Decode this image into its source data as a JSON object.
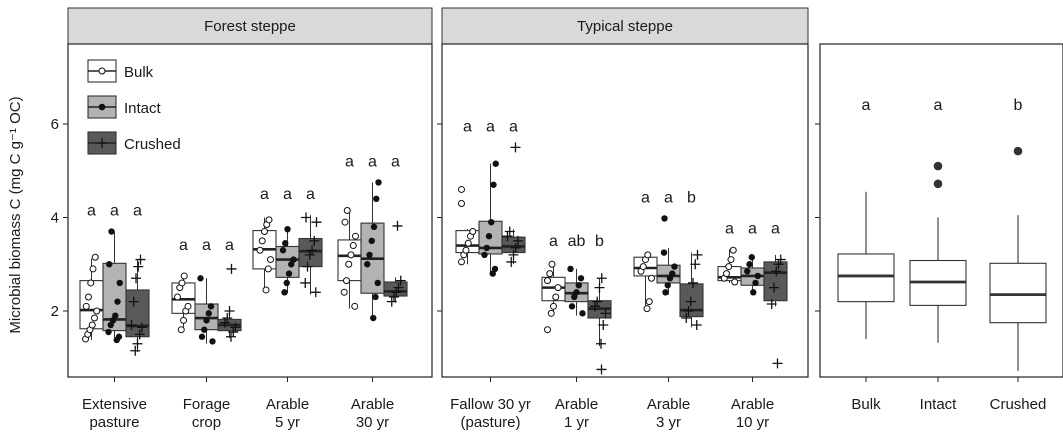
{
  "chart_data": {
    "type": "box",
    "ylabel": "Microbial biomass C (mg C g⁻¹ OC)",
    "ylim": [
      0.4,
      7.8
    ],
    "yticks": [
      2,
      4,
      6
    ],
    "colors": {
      "Bulk": "#ffffff",
      "Intact": "#b3b3b3",
      "Crushed": "#595959"
    },
    "legend": {
      "position": "top-left",
      "entries": [
        "Bulk",
        "Intact",
        "Crushed"
      ]
    },
    "panels": [
      {
        "strip": "Forest steppe",
        "categories": [
          {
            "label": [
              "Extensive",
              "pasture"
            ],
            "letters": [
              "a",
              "a",
              "a"
            ],
            "boxes": [
              {
                "q1": 1.62,
                "median": 2.02,
                "q3": 2.65,
                "wlo": 1.38,
                "whi": 3.12,
                "pts": [
                  1.4,
                  1.5,
                  1.6,
                  1.7,
                  1.85,
                  2.0,
                  2.1,
                  2.3,
                  2.6,
                  2.9,
                  3.15
                ]
              },
              {
                "q1": 1.58,
                "median": 1.82,
                "q3": 3.02,
                "wlo": 1.38,
                "whi": 3.7,
                "pts": [
                  1.38,
                  1.45,
                  1.55,
                  1.7,
                  1.8,
                  1.9,
                  2.2,
                  2.6,
                  3.0,
                  3.7
                ]
              },
              {
                "q1": 1.45,
                "median": 1.68,
                "q3": 2.45,
                "wlo": 1.12,
                "whi": 3.1,
                "pts": [
                  1.15,
                  1.3,
                  1.5,
                  1.65,
                  1.7,
                  2.2,
                  2.7,
                  2.95,
                  3.1
                ]
              }
            ]
          },
          {
            "label": [
              "Forage",
              "crop"
            ],
            "letters": [
              "a",
              "a",
              "a"
            ],
            "boxes": [
              {
                "q1": 1.95,
                "median": 2.25,
                "q3": 2.6,
                "wlo": 1.55,
                "whi": 2.8,
                "pts": [
                  1.6,
                  1.8,
                  2.0,
                  2.1,
                  2.3,
                  2.5,
                  2.6,
                  2.75
                ]
              },
              {
                "q1": 1.6,
                "median": 1.85,
                "q3": 2.15,
                "wlo": 1.3,
                "whi": 2.7,
                "pts": [
                  1.35,
                  1.45,
                  1.6,
                  1.8,
                  1.95,
                  2.1,
                  2.7
                ]
              },
              {
                "q1": 1.58,
                "median": 1.7,
                "q3": 1.82,
                "wlo": 1.42,
                "whi": 1.95,
                "pts": [
                  1.45,
                  1.55,
                  1.65,
                  1.75,
                  1.85,
                  2.0
                ],
                "outliers": [
                  2.9
                ]
              }
            ]
          },
          {
            "label": [
              "Arable",
              "5 yr"
            ],
            "letters": [
              "a",
              "a",
              "a"
            ],
            "boxes": [
              {
                "q1": 2.9,
                "median": 3.32,
                "q3": 3.72,
                "wlo": 2.4,
                "whi": 4.0,
                "pts": [
                  2.45,
                  2.9,
                  3.1,
                  3.3,
                  3.5,
                  3.7,
                  3.85,
                  3.95
                ]
              },
              {
                "q1": 2.72,
                "median": 3.1,
                "q3": 3.38,
                "wlo": 2.38,
                "whi": 3.78,
                "pts": [
                  2.4,
                  2.6,
                  2.8,
                  3.0,
                  3.1,
                  3.3,
                  3.45,
                  3.75
                ]
              },
              {
                "q1": 2.95,
                "median": 3.28,
                "q3": 3.55,
                "wlo": 2.35,
                "whi": 4.05,
                "pts": [
                  2.4,
                  2.6,
                  2.95,
                  3.2,
                  3.3,
                  3.5,
                  3.9,
                  4.0
                ]
              }
            ]
          },
          {
            "label": [
              "Arable",
              "30 yr"
            ],
            "letters": [
              "a",
              "a",
              "a"
            ],
            "boxes": [
              {
                "q1": 2.65,
                "median": 3.18,
                "q3": 3.52,
                "wlo": 2.05,
                "whi": 4.2,
                "pts": [
                  2.1,
                  2.4,
                  2.65,
                  3.0,
                  3.2,
                  3.4,
                  3.6,
                  3.9,
                  4.15
                ]
              },
              {
                "q1": 2.38,
                "median": 3.12,
                "q3": 3.88,
                "wlo": 1.8,
                "whi": 4.75,
                "pts": [
                  1.85,
                  2.3,
                  2.6,
                  3.0,
                  3.2,
                  3.5,
                  3.8,
                  4.4,
                  4.75
                ]
              },
              {
                "q1": 2.32,
                "median": 2.42,
                "q3": 2.62,
                "wlo": 2.18,
                "whi": 2.72,
                "pts": [
                  2.2,
                  2.3,
                  2.4,
                  2.5,
                  2.65
                ],
                "outliers": [
                  3.82
                ]
              }
            ]
          }
        ]
      },
      {
        "strip": "Typical steppe",
        "categories": [
          {
            "label": [
              "Fallow 30 yr",
              "(pasture)"
            ],
            "letters": [
              "a",
              "a",
              "a"
            ],
            "boxes": [
              {
                "q1": 3.25,
                "median": 3.4,
                "q3": 3.72,
                "wlo": 3.0,
                "whi": 3.75,
                "pts": [
                  3.05,
                  3.2,
                  3.3,
                  3.45,
                  3.6,
                  3.7
                ],
                "outliers": [
                  4.3,
                  4.6
                ]
              },
              {
                "q1": 3.22,
                "median": 3.35,
                "q3": 3.92,
                "wlo": 2.8,
                "whi": 5.15,
                "pts": [
                  2.8,
                  2.9,
                  3.2,
                  3.35,
                  3.6,
                  3.9,
                  4.7,
                  5.15
                ]
              },
              {
                "q1": 3.25,
                "median": 3.38,
                "q3": 3.58,
                "wlo": 3.0,
                "whi": 3.75,
                "pts": [
                  3.05,
                  3.2,
                  3.35,
                  3.5,
                  3.6,
                  3.7
                ],
                "outliers": [
                  5.5
                ]
              }
            ]
          },
          {
            "label": [
              "Arable",
              "1 yr"
            ],
            "letters": [
              "a",
              "ab",
              "b"
            ],
            "boxes": [
              {
                "q1": 2.22,
                "median": 2.5,
                "q3": 2.72,
                "wlo": 1.9,
                "whi": 3.05,
                "pts": [
                  1.95,
                  2.1,
                  2.3,
                  2.5,
                  2.65,
                  2.8,
                  3.0
                ],
                "outliers": [
                  1.6
                ]
              },
              {
                "q1": 2.2,
                "median": 2.38,
                "q3": 2.6,
                "wlo": 1.9,
                "whi": 2.9,
                "pts": [
                  1.95,
                  2.1,
                  2.3,
                  2.4,
                  2.55,
                  2.7,
                  2.9
                ]
              },
              {
                "q1": 1.85,
                "median": 2.05,
                "q3": 2.22,
                "wlo": 1.25,
                "whi": 2.7,
                "pts": [
                  1.3,
                  1.7,
                  1.95,
                  2.1,
                  2.2,
                  2.5,
                  2.7
                ],
                "outliers": [
                  0.75
                ]
              }
            ]
          },
          {
            "label": [
              "Arable",
              "3 yr"
            ],
            "letters": [
              "a",
              "a",
              "b"
            ],
            "boxes": [
              {
                "q1": 2.75,
                "median": 2.92,
                "q3": 3.15,
                "wlo": 2.05,
                "whi": 3.25,
                "pts": [
                  2.05,
                  2.2,
                  2.7,
                  2.85,
                  2.95,
                  3.1,
                  3.2
                ]
              },
              {
                "q1": 2.6,
                "median": 2.75,
                "q3": 2.98,
                "wlo": 2.35,
                "whi": 3.35,
                "pts": [
                  2.4,
                  2.55,
                  2.7,
                  2.8,
                  2.95,
                  3.25
                ],
                "outliers": [
                  3.98
                ]
              },
              {
                "q1": 1.88,
                "median": 2.02,
                "q3": 2.58,
                "wlo": 1.65,
                "whi": 3.25,
                "pts": [
                  1.7,
                  1.85,
                  2.0,
                  2.2,
                  2.6,
                  3.0,
                  3.2
                ]
              }
            ]
          },
          {
            "label": [
              "Arable",
              "10 yr"
            ],
            "letters": [
              "a",
              "a",
              "a"
            ],
            "boxes": [
              {
                "q1": 2.65,
                "median": 2.72,
                "q3": 2.95,
                "wlo": 2.6,
                "whi": 3.32,
                "pts": [
                  2.62,
                  2.7,
                  2.8,
                  2.95,
                  3.1,
                  3.3
                ]
              },
              {
                "q1": 2.55,
                "median": 2.75,
                "q3": 2.92,
                "wlo": 2.35,
                "whi": 3.2,
                "pts": [
                  2.4,
                  2.6,
                  2.75,
                  2.85,
                  3.0,
                  3.15
                ]
              },
              {
                "q1": 2.22,
                "median": 2.82,
                "q3": 3.05,
                "wlo": 2.1,
                "whi": 3.2,
                "pts": [
                  2.15,
                  2.5,
                  2.85,
                  3.0,
                  3.1
                ],
                "outliers": [
                  0.88
                ]
              }
            ]
          }
        ]
      },
      {
        "strip": "",
        "summary": true,
        "categories": [
          {
            "label": [
              "Bulk"
            ],
            "letter": "a",
            "box": {
              "q1": 2.2,
              "median": 2.75,
              "q3": 3.22,
              "wlo": 1.4,
              "whi": 4.55,
              "outliers": []
            }
          },
          {
            "label": [
              "Intact"
            ],
            "letter": "a",
            "box": {
              "q1": 2.12,
              "median": 2.62,
              "q3": 3.08,
              "wlo": 1.32,
              "whi": 4.0,
              "outliers": [
                4.72,
                5.1
              ]
            }
          },
          {
            "label": [
              "Crushed"
            ],
            "letter": "b",
            "box": {
              "q1": 1.75,
              "median": 2.35,
              "q3": 3.02,
              "wlo": 0.72,
              "whi": 4.05,
              "outliers": [
                5.42
              ]
            }
          }
        ]
      }
    ]
  }
}
